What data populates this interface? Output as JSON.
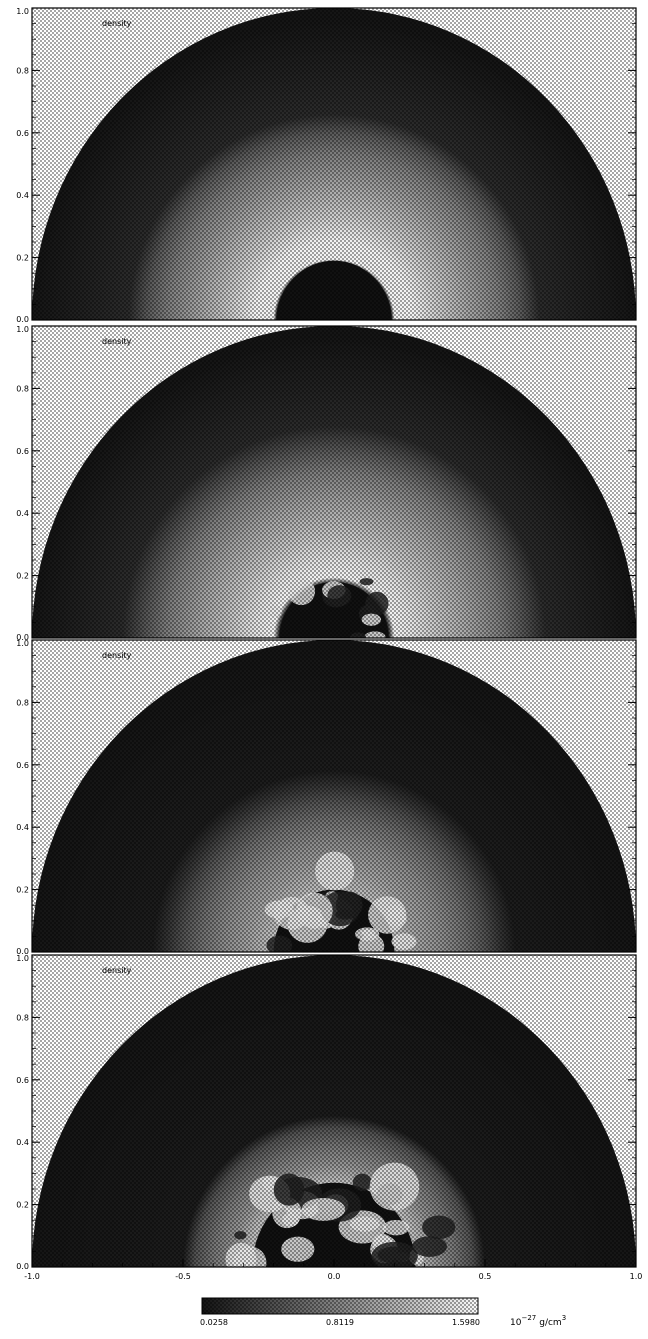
{
  "chart_data": {
    "type": "heatmap",
    "grid": false,
    "colormap": "grayscale-dithered",
    "colors": {
      "background": "#ffffff",
      "axis": "#000000",
      "dark": "#111111",
      "light": "#f2f2f2"
    },
    "panels": [
      {
        "label": "density",
        "ylim": [
          0.0,
          1.0
        ],
        "yticks": [
          "0.0",
          "0.2",
          "0.4",
          "0.6",
          "0.8",
          "1.0"
        ],
        "radial_profile": {
          "r": [
            0.0,
            0.19,
            0.2,
            0.26,
            0.34,
            0.45,
            0.55,
            0.62,
            0.68,
            1.0
          ],
          "value": [
            0.03,
            0.03,
            1.55,
            1.55,
            1.3,
            1.0,
            0.75,
            0.5,
            0.18,
            0.03
          ]
        },
        "core": {
          "radius": 0.19,
          "turbulence": 0.0
        }
      },
      {
        "label": "density",
        "ylim": [
          0.0,
          1.0
        ],
        "yticks": [
          "0.0",
          "0.2",
          "0.4",
          "0.6",
          "0.8",
          "1.0"
        ],
        "radial_profile": {
          "r": [
            0.0,
            0.18,
            0.2,
            0.26,
            0.34,
            0.45,
            0.55,
            0.62,
            0.7,
            1.0
          ],
          "value": [
            0.03,
            0.03,
            1.55,
            1.45,
            1.25,
            1.0,
            0.75,
            0.5,
            0.18,
            0.03
          ]
        },
        "core": {
          "radius": 0.18,
          "turbulence": 0.15
        }
      },
      {
        "label": "density",
        "ylim": [
          0.0,
          1.0
        ],
        "yticks": [
          "0.0",
          "0.2",
          "0.4",
          "0.6",
          "0.8",
          "1.0"
        ],
        "radial_profile": {
          "r": [
            0.0,
            0.17,
            0.2,
            0.28,
            0.36,
            0.44,
            0.5,
            0.55,
            0.6,
            1.0
          ],
          "value": [
            0.03,
            0.03,
            1.2,
            1.0,
            0.85,
            0.65,
            0.45,
            0.25,
            0.08,
            0.03
          ]
        },
        "core": {
          "radius": 0.2,
          "turbulence": 0.45
        }
      },
      {
        "label": "density",
        "ylim": [
          0.0,
          1.0
        ],
        "yticks": [
          "0.0",
          "0.2",
          "0.4",
          "0.6",
          "0.8",
          "1.0"
        ],
        "radial_profile": {
          "r": [
            0.0,
            0.22,
            0.28,
            0.34,
            0.4,
            0.46,
            0.5,
            1.0
          ],
          "value": [
            0.03,
            0.4,
            1.2,
            0.9,
            0.7,
            0.45,
            0.08,
            0.03
          ]
        },
        "core": {
          "radius": 0.27,
          "turbulence": 0.75
        }
      }
    ],
    "xlim": [
      -1.0,
      1.0
    ],
    "xticks": [
      "-1.0",
      "-0.5",
      "0.0",
      "0.5",
      "1.0"
    ],
    "colorbar": {
      "vmin": 0.0258,
      "vmax": 1.598,
      "ticks": [
        "0.0258",
        "0.8119",
        "1.5980"
      ],
      "unit": "10<sup>−27</sup> g/cm<sup>3</sup>",
      "unit_base": "10",
      "unit_exp": "−27",
      "unit_tail": "g/cm",
      "unit_exp2": "3"
    }
  }
}
